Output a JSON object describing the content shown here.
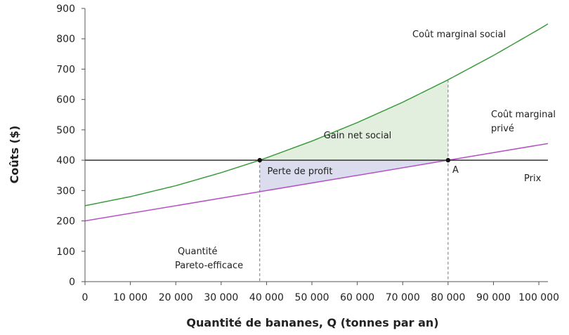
{
  "chart_data": {
    "type": "line",
    "xlabel": "Quantité de bananes, Q (tonnes par an)",
    "ylabel": "Coûts ($)",
    "xlim": [
      0,
      102000
    ],
    "ylim": [
      0,
      900
    ],
    "x_ticks": [
      0,
      10000,
      20000,
      30000,
      40000,
      50000,
      60000,
      70000,
      80000,
      90000,
      100000
    ],
    "x_tick_labels": [
      "0",
      "10 000",
      "20 000",
      "30 000",
      "40 000",
      "50 000",
      "60 000",
      "70 000",
      "80 000",
      "90 000",
      "100 000"
    ],
    "y_ticks": [
      0,
      100,
      200,
      300,
      400,
      500,
      600,
      700,
      800,
      900
    ],
    "y_tick_labels": [
      "0",
      "100",
      "200",
      "300",
      "400",
      "500",
      "600",
      "700",
      "800",
      "900"
    ],
    "grid": false,
    "series": [
      {
        "name": "Coût marginal social",
        "color": "#3d9b3d",
        "x": [
          0,
          10000,
          20000,
          30000,
          38500,
          40000,
          50000,
          60000,
          70000,
          80000,
          90000,
          100000,
          102000
        ],
        "y": [
          250,
          280,
          316,
          359,
          400,
          408,
          463,
          524,
          591,
          665,
          745,
          831,
          849
        ]
      },
      {
        "name": "Coût marginal privé",
        "color": "#b550c4",
        "x": [
          0,
          102000
        ],
        "y": [
          200,
          455
        ]
      },
      {
        "name": "Prix",
        "color": "#333333",
        "x": [
          0,
          102000
        ],
        "y": [
          400,
          400
        ]
      }
    ],
    "points": [
      {
        "x": 38500,
        "y": 400,
        "label": ""
      },
      {
        "x": 80000,
        "y": 400,
        "label": "A"
      }
    ],
    "vlines": [
      38500,
      80000
    ],
    "regions": [
      {
        "label": "Gain net social",
        "color": "#e2efdf"
      },
      {
        "label": "Perte de profit",
        "color": "#dcdcef"
      }
    ],
    "annotations": {
      "social_line1": "Coût marginal social",
      "private_line1": "Coût marginal",
      "private_line2": "privé",
      "price": "Prix",
      "pareto_line1": "Quantité",
      "pareto_line2": "Pareto-efficace"
    }
  }
}
